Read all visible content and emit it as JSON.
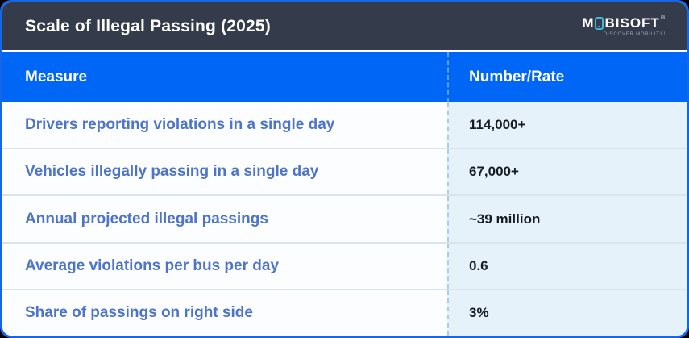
{
  "header": {
    "title": "Scale of Illegal Passing (2025)",
    "bg_color": "#343c4b",
    "logo": {
      "prefix": "M",
      "suffix": "BISOFT",
      "trademark": "®",
      "tagline": "DISCOVER MOBILITY!",
      "icon": "phone-icon",
      "icon_color": "#45b5d6"
    }
  },
  "table": {
    "header_bg_color": "#0066f5",
    "measure_text_color": "#4e74c8",
    "value_cell_bg_color": "#e6f2fa",
    "border_accent_color": "#1566e9",
    "columns": [
      {
        "label": "Measure"
      },
      {
        "label": "Number/Rate"
      }
    ],
    "rows": [
      {
        "measure": "Drivers reporting violations in a single day",
        "value": "114,000+"
      },
      {
        "measure": "Vehicles illegally passing in a single day",
        "value": "67,000+"
      },
      {
        "measure": "Annual projected illegal passings",
        "value": "~39 million"
      },
      {
        "measure": "Average violations per bus per day",
        "value": "0.6"
      },
      {
        "measure": "Share of passings on right side",
        "value": "3%"
      }
    ]
  },
  "chart_data": {
    "type": "table",
    "title": "Scale of Illegal Passing (2025)",
    "columns": [
      "Measure",
      "Number/Rate"
    ],
    "rows": [
      [
        "Drivers reporting violations in a single day",
        "114,000+"
      ],
      [
        "Vehicles illegally passing in a single day",
        "67,000+"
      ],
      [
        "Annual projected illegal passings",
        "~39 million"
      ],
      [
        "Average violations per bus per day",
        "0.6"
      ],
      [
        "Share of passings on right side",
        "3%"
      ]
    ],
    "legend_position": "none",
    "grid": false
  }
}
